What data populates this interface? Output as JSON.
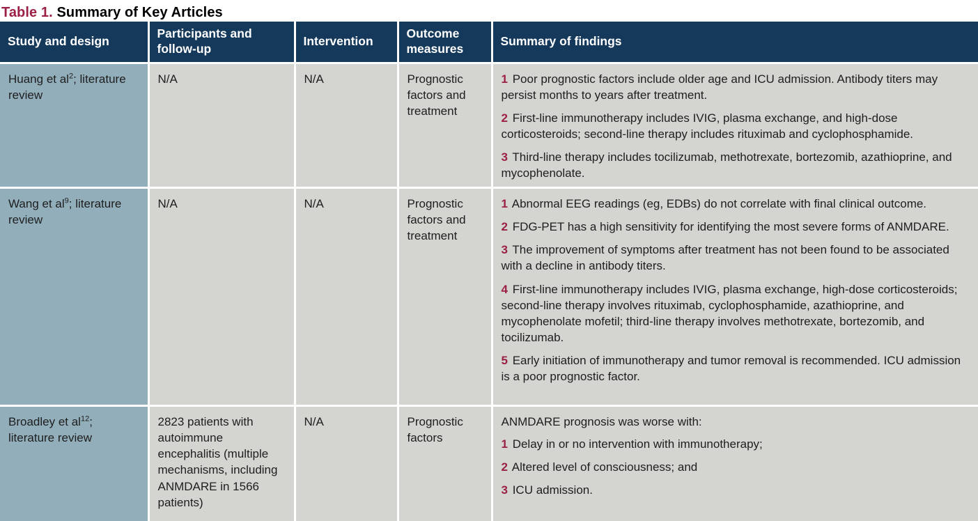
{
  "title": {
    "label": "Table 1.",
    "text": " Summary of Key Articles"
  },
  "colors": {
    "header_bg": "#14395B",
    "study_column_bg": "#92AEBA",
    "cell_bg": "#D4D5D0",
    "accent_maroon": "#9B2044",
    "header_text": "#FFFFFF",
    "body_text": "#1E1E1E"
  },
  "table": {
    "headers": [
      {
        "key": "study-and-design",
        "label": "Study and design"
      },
      {
        "key": "participants-and-follow-up",
        "label": "Participants and follow-up"
      },
      {
        "key": "intervention",
        "label": "Intervention"
      },
      {
        "key": "outcome-measures",
        "label": "Outcome measures"
      },
      {
        "key": "summary-of-findings",
        "label": "Summary of findings"
      }
    ],
    "rows": [
      {
        "study": {
          "prefix": "Huang et al",
          "superscript": "2",
          "suffix": "; literature review"
        },
        "participants": "N/A",
        "intervention": "N/A",
        "outcome": "Prognostic factors and treatment",
        "findings_intro": "",
        "findings": [
          {
            "num": "1",
            "text": "Poor prognostic factors include older age and ICU admission. Antibody titers may persist months to years after treatment."
          },
          {
            "num": "2",
            "text": "First-line immunotherapy includes IVIG, plasma exchange, and high-dose corticosteroids; second-line therapy includes rituximab and cyclophosphamide."
          },
          {
            "num": "3",
            "text": "Third-line therapy includes tocilizumab, methotrexate, bortezomib, azathioprine, and mycophenolate."
          }
        ]
      },
      {
        "study": {
          "prefix": "Wang et al",
          "superscript": "9",
          "suffix": "; literature review"
        },
        "participants": "N/A",
        "intervention": "N/A",
        "outcome": "Prognostic factors and treatment",
        "findings_intro": "",
        "findings": [
          {
            "num": "1",
            "text": "Abnormal EEG readings (eg, EDBs) do not correlate with final clinical outcome."
          },
          {
            "num": "2",
            "text": "FDG-PET has a high sensitivity for identifying the most severe forms of ANMDARE."
          },
          {
            "num": "3",
            "text": "The improvement of symptoms after treatment has not been found to be associated with a decline in antibody titers."
          },
          {
            "num": "4",
            "text": "First-line immunotherapy includes IVIG, plasma exchange, high-dose corticosteroids; second-line therapy involves rituximab, cyclophosphamide, azathioprine, and mycophenolate mofetil; third-line therapy involves methotrexate, bortezomib, and tocilizumab."
          },
          {
            "num": "5",
            "text": "Early initiation of immunotherapy and tumor removal is recommended. ICU admission is a poor prognostic factor."
          }
        ]
      },
      {
        "study": {
          "prefix": "Broadley et al",
          "superscript": "12",
          "suffix": "; literature review"
        },
        "participants": "2823 patients with autoimmune encephalitis (multiple mechanisms, including ANMDARE in 1566 patients)",
        "intervention": "N/A",
        "outcome": "Prognostic factors",
        "findings_intro": "ANMDARE prognosis was worse with:",
        "findings": [
          {
            "num": "1",
            "text": "Delay in or no intervention with immunotherapy;"
          },
          {
            "num": "2",
            "text": "Altered level of consciousness; and"
          },
          {
            "num": "3",
            "text": "ICU admission."
          }
        ]
      }
    ]
  }
}
